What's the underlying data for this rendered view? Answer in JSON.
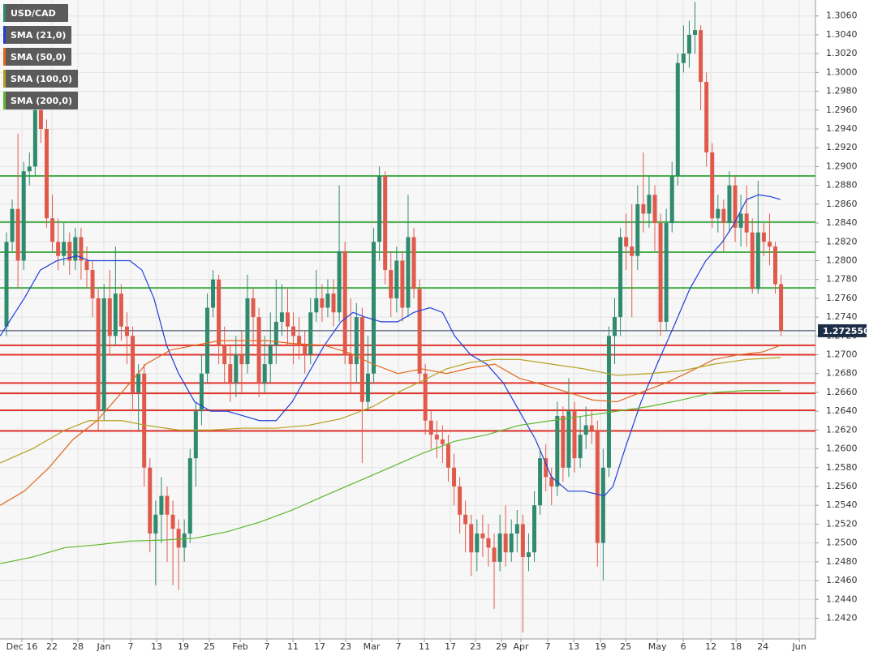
{
  "chart_data": {
    "type": "candlestick",
    "candles": {
      "name": "USD/CAD",
      "up_color": "#2f8a6e",
      "down_color": "#e05a4c",
      "legend_color": "#2f8a6e",
      "open": [
        1.273,
        1.282,
        1.2855,
        1.28,
        1.2895,
        1.29,
        1.296,
        1.294,
        1.2845,
        1.282,
        1.2805,
        1.282,
        1.28,
        1.2825,
        1.28,
        1.279,
        1.276,
        1.264,
        1.276,
        1.272,
        1.2765,
        1.273,
        1.272,
        1.266,
        1.268,
        1.258,
        1.251,
        1.253,
        1.255,
        1.253,
        1.2515,
        1.2495,
        1.251,
        1.259,
        1.264,
        1.268,
        1.275,
        1.278,
        1.271,
        1.269,
        1.267,
        1.27,
        1.269,
        1.276,
        1.274,
        1.267,
        1.269,
        1.271,
        1.2735,
        1.2745,
        1.273,
        1.272,
        1.271,
        1.27,
        1.2745,
        1.276,
        1.275,
        1.2765,
        1.2745,
        1.281,
        1.27,
        1.269,
        1.274,
        1.265,
        1.268,
        1.282,
        1.289,
        1.279,
        1.276,
        1.28,
        1.275,
        1.2825,
        1.277,
        1.268,
        1.263,
        1.2615,
        1.261,
        1.2605,
        1.258,
        1.256,
        1.253,
        1.252,
        1.249,
        1.251,
        1.2505,
        1.2495,
        1.248,
        1.251,
        1.249,
        1.251,
        1.252,
        1.2485,
        1.249,
        1.254,
        1.259,
        1.257,
        1.256,
        1.2635,
        1.258,
        1.264,
        1.259,
        1.2615,
        1.2625,
        1.262,
        1.25,
        1.258,
        1.272,
        1.274,
        1.2825,
        1.2815,
        1.2805,
        1.286,
        1.285,
        1.287,
        1.284,
        1.2735,
        1.284,
        1.289,
        1.301,
        1.302,
        1.304,
        1.3045,
        1.299,
        1.2915,
        1.2845,
        1.2855,
        1.284,
        1.288,
        1.2835,
        1.285,
        1.283,
        1.277,
        1.283,
        1.282,
        1.2815,
        1.2775
      ],
      "high": [
        1.283,
        1.2865,
        1.2935,
        1.2905,
        1.2915,
        1.297,
        1.2975,
        1.295,
        1.287,
        1.2845,
        1.284,
        1.283,
        1.2835,
        1.2835,
        1.2815,
        1.28,
        1.277,
        1.2775,
        1.279,
        1.2815,
        1.2775,
        1.2745,
        1.273,
        1.269,
        1.269,
        1.259,
        1.2545,
        1.257,
        1.256,
        1.2545,
        1.2525,
        1.2525,
        1.26,
        1.265,
        1.27,
        1.2765,
        1.279,
        1.2785,
        1.273,
        1.271,
        1.272,
        1.2725,
        1.2785,
        1.277,
        1.275,
        1.272,
        1.2745,
        1.278,
        1.2775,
        1.277,
        1.2745,
        1.274,
        1.2725,
        1.276,
        1.279,
        1.2775,
        1.278,
        1.278,
        1.288,
        1.282,
        1.276,
        1.2755,
        1.275,
        1.272,
        1.2835,
        1.29,
        1.2895,
        1.281,
        1.2815,
        1.281,
        1.287,
        1.2835,
        1.278,
        1.269,
        1.264,
        1.263,
        1.2625,
        1.2615,
        1.2595,
        1.257,
        1.2545,
        1.253,
        1.2525,
        1.253,
        1.252,
        1.251,
        1.253,
        1.254,
        1.2525,
        1.2535,
        1.253,
        1.251,
        1.2555,
        1.26,
        1.2605,
        1.258,
        1.265,
        1.2645,
        1.2675,
        1.265,
        1.2635,
        1.2645,
        1.264,
        1.263,
        1.26,
        1.273,
        1.276,
        1.2835,
        1.285,
        1.286,
        1.288,
        1.2915,
        1.289,
        1.288,
        1.285,
        1.2855,
        1.2905,
        1.302,
        1.305,
        1.3055,
        1.3075,
        1.305,
        1.3,
        1.2925,
        1.287,
        1.2865,
        1.2895,
        1.289,
        1.287,
        1.288,
        1.2845,
        1.2885,
        1.284,
        1.285,
        1.282,
        1.2785
      ],
      "low": [
        1.272,
        1.281,
        1.277,
        1.279,
        1.288,
        1.289,
        1.2925,
        1.2835,
        1.281,
        1.279,
        1.2795,
        1.2785,
        1.279,
        1.278,
        1.277,
        1.274,
        1.262,
        1.263,
        1.27,
        1.271,
        1.2715,
        1.269,
        1.264,
        1.262,
        1.256,
        1.249,
        1.2455,
        1.25,
        1.248,
        1.2455,
        1.245,
        1.248,
        1.25,
        1.256,
        1.2625,
        1.267,
        1.274,
        1.269,
        1.267,
        1.265,
        1.2655,
        1.266,
        1.268,
        1.271,
        1.2655,
        1.266,
        1.267,
        1.269,
        1.272,
        1.271,
        1.269,
        1.2695,
        1.268,
        1.269,
        1.2735,
        1.2735,
        1.274,
        1.273,
        1.2735,
        1.269,
        1.266,
        1.267,
        1.2585,
        1.264,
        1.267,
        1.28,
        1.2775,
        1.274,
        1.2745,
        1.2735,
        1.274,
        1.276,
        1.267,
        1.2615,
        1.26,
        1.259,
        1.2585,
        1.2565,
        1.254,
        1.251,
        1.249,
        1.2465,
        1.247,
        1.2485,
        1.2475,
        1.243,
        1.247,
        1.2475,
        1.248,
        1.249,
        1.2405,
        1.247,
        1.248,
        1.253,
        1.2555,
        1.254,
        1.255,
        1.2565,
        1.257,
        1.2575,
        1.258,
        1.26,
        1.2605,
        1.2475,
        1.246,
        1.257,
        1.269,
        1.272,
        1.279,
        1.274,
        1.279,
        1.283,
        1.2835,
        1.281,
        1.272,
        1.2725,
        1.283,
        1.288,
        1.3,
        1.3005,
        1.302,
        1.296,
        1.29,
        1.2835,
        1.283,
        1.281,
        1.283,
        1.282,
        1.2815,
        1.2815,
        1.2765,
        1.2765,
        1.2805,
        1.2795,
        1.2765,
        1.272
      ],
      "close": [
        1.282,
        1.2855,
        1.28,
        1.2895,
        1.29,
        1.296,
        1.294,
        1.2845,
        1.282,
        1.2805,
        1.282,
        1.28,
        1.2825,
        1.28,
        1.279,
        1.276,
        1.264,
        1.276,
        1.272,
        1.2765,
        1.273,
        1.272,
        1.266,
        1.268,
        1.258,
        1.251,
        1.253,
        1.255,
        1.253,
        1.2515,
        1.2495,
        1.251,
        1.259,
        1.264,
        1.268,
        1.275,
        1.278,
        1.271,
        1.269,
        1.267,
        1.27,
        1.269,
        1.276,
        1.274,
        1.267,
        1.269,
        1.271,
        1.2735,
        1.2745,
        1.273,
        1.272,
        1.271,
        1.27,
        1.2745,
        1.276,
        1.275,
        1.2765,
        1.2745,
        1.281,
        1.27,
        1.269,
        1.274,
        1.265,
        1.268,
        1.282,
        1.289,
        1.279,
        1.276,
        1.28,
        1.275,
        1.2825,
        1.277,
        1.268,
        1.263,
        1.2615,
        1.261,
        1.2605,
        1.258,
        1.256,
        1.253,
        1.252,
        1.249,
        1.251,
        1.2505,
        1.2495,
        1.248,
        1.251,
        1.249,
        1.251,
        1.252,
        1.2485,
        1.249,
        1.254,
        1.259,
        1.257,
        1.256,
        1.2635,
        1.258,
        1.264,
        1.259,
        1.2615,
        1.2625,
        1.262,
        1.25,
        1.258,
        1.272,
        1.274,
        1.2825,
        1.2815,
        1.2805,
        1.286,
        1.285,
        1.287,
        1.284,
        1.2735,
        1.284,
        1.289,
        1.301,
        1.302,
        1.304,
        1.3045,
        1.299,
        1.2915,
        1.2845,
        1.2855,
        1.284,
        1.288,
        1.2835,
        1.285,
        1.283,
        1.277,
        1.283,
        1.282,
        1.2815,
        1.2775,
        1.27255
      ]
    },
    "overlays": [
      {
        "name": "SMA (21,0)",
        "color": "#1f3fd8",
        "x": [
          -1.1,
          3.1,
          5.9,
          8.8,
          12.3,
          14.4,
          18.7,
          21.5,
          23.6,
          25.7,
          27.9,
          30.0,
          32.8,
          35.6,
          38.5,
          41.3,
          44.1,
          47.0,
          49.8,
          52.6,
          55.4,
          58.3,
          60.4,
          62.5,
          65.3,
          68.2,
          71.0,
          73.8,
          76.0,
          78.1,
          80.9,
          83.7,
          86.6,
          89.4,
          92.2,
          95.0,
          97.9,
          100.7,
          104.2,
          105.7,
          107.8,
          110.6,
          113.4,
          116.3,
          119.1,
          121.9,
          124.8,
          126.9,
          129.0,
          131.1,
          133.2,
          134.9
        ],
        "values": [
          1.272,
          1.276,
          1.279,
          1.28,
          1.2805,
          1.28,
          1.28,
          1.28,
          1.279,
          1.276,
          1.271,
          1.268,
          1.265,
          1.264,
          1.264,
          1.2635,
          1.263,
          1.263,
          1.265,
          1.268,
          1.271,
          1.2735,
          1.2745,
          1.274,
          1.2735,
          1.2735,
          1.2745,
          1.275,
          1.2745,
          1.272,
          1.27,
          1.269,
          1.267,
          1.264,
          1.261,
          1.257,
          1.2555,
          1.2555,
          1.255,
          1.256,
          1.26,
          1.265,
          1.269,
          1.273,
          1.277,
          1.28,
          1.282,
          1.284,
          1.2865,
          1.287,
          1.2868,
          1.2865
        ]
      },
      {
        "name": "SMA (50,0)",
        "color": "#e2661c",
        "x": [
          -1.1,
          3.1,
          7.4,
          11.6,
          15.8,
          20.1,
          24.3,
          28.6,
          32.8,
          37.1,
          41.3,
          45.5,
          49.8,
          55.4,
          59.7,
          63.9,
          68.2,
          72.4,
          76.7,
          80.9,
          85.1,
          89.4,
          93.6,
          97.9,
          102.1,
          106.4,
          110.6,
          114.9,
          119.1,
          123.3,
          127.6,
          131.8,
          134.9
        ],
        "values": [
          1.254,
          1.2555,
          1.258,
          1.261,
          1.263,
          1.266,
          1.269,
          1.2705,
          1.271,
          1.2715,
          1.2715,
          1.2715,
          1.2712,
          1.271,
          1.2702,
          1.269,
          1.268,
          1.2685,
          1.268,
          1.2686,
          1.269,
          1.2675,
          1.2668,
          1.266,
          1.2652,
          1.265,
          1.266,
          1.267,
          1.2682,
          1.2695,
          1.27,
          1.2703,
          1.271
        ]
      },
      {
        "name": "SMA (100,0)",
        "color": "#b59f1e",
        "x": [
          -1.1,
          4.5,
          10.2,
          14.4,
          20.1,
          24.3,
          30.0,
          35.6,
          41.3,
          47.0,
          52.6,
          58.3,
          63.9,
          68.2,
          72.4,
          76.7,
          80.9,
          85.1,
          89.4,
          95.0,
          100.7,
          106.4,
          112.0,
          117.7,
          123.3,
          129.0,
          134.9
        ],
        "values": [
          1.2585,
          1.26,
          1.262,
          1.263,
          1.263,
          1.2625,
          1.262,
          1.262,
          1.2622,
          1.2622,
          1.2625,
          1.2632,
          1.2645,
          1.266,
          1.2672,
          1.2685,
          1.2692,
          1.2695,
          1.2695,
          1.269,
          1.2685,
          1.2678,
          1.268,
          1.2683,
          1.269,
          1.2695,
          1.2697
        ]
      },
      {
        "name": "SMA (200,0)",
        "color": "#5cb82c",
        "x": [
          -1.1,
          4.5,
          10.2,
          15.8,
          21.5,
          27.2,
          32.8,
          38.5,
          44.1,
          49.8,
          55.4,
          61.1,
          66.8,
          72.4,
          78.1,
          83.7,
          89.4,
          95.0,
          100.7,
          106.4,
          112.0,
          117.7,
          123.3,
          129.0,
          134.9
        ],
        "values": [
          1.2478,
          1.2485,
          1.2495,
          1.2498,
          1.2502,
          1.2503,
          1.2505,
          1.2512,
          1.2522,
          1.2535,
          1.255,
          1.2565,
          1.258,
          1.2595,
          1.2608,
          1.2615,
          1.2625,
          1.263,
          1.2635,
          1.264,
          1.2645,
          1.2652,
          1.266,
          1.2662,
          1.2662
        ]
      }
    ],
    "levels": [
      {
        "color": "#49ad4c",
        "values": [
          1.289,
          1.2841,
          1.2809,
          1.2771
        ]
      },
      {
        "color": "#e0352b",
        "values": [
          1.271,
          1.27,
          1.267,
          1.2659,
          1.2641,
          1.2619
        ]
      }
    ],
    "last_price": {
      "value": 1.27255,
      "label": "1.272550"
    },
    "xlim": [
      -1.13,
      141.0
    ],
    "xticks": [
      {
        "value": 2.69,
        "label": "Dec 16"
      },
      {
        "value": 7.92,
        "label": "22"
      },
      {
        "value": 12.45,
        "label": "28"
      },
      {
        "value": 16.97,
        "label": "Jan"
      },
      {
        "value": 21.64,
        "label": "7"
      },
      {
        "value": 26.17,
        "label": "13"
      },
      {
        "value": 30.83,
        "label": "19"
      },
      {
        "value": 35.36,
        "label": "25"
      },
      {
        "value": 40.74,
        "label": "Feb"
      },
      {
        "value": 45.4,
        "label": "7"
      },
      {
        "value": 49.93,
        "label": "11"
      },
      {
        "value": 54.6,
        "label": "17"
      },
      {
        "value": 59.12,
        "label": "23"
      },
      {
        "value": 63.65,
        "label": "Mar"
      },
      {
        "value": 68.32,
        "label": "7"
      },
      {
        "value": 72.84,
        "label": "11"
      },
      {
        "value": 77.37,
        "label": "17"
      },
      {
        "value": 81.75,
        "label": "23"
      },
      {
        "value": 86.28,
        "label": "29"
      },
      {
        "value": 89.67,
        "label": "Apr"
      },
      {
        "value": 94.34,
        "label": "7"
      },
      {
        "value": 98.87,
        "label": "13"
      },
      {
        "value": 103.54,
        "label": "19"
      },
      {
        "value": 107.92,
        "label": "25"
      },
      {
        "value": 113.44,
        "label": "May"
      },
      {
        "value": 117.96,
        "label": "6"
      },
      {
        "value": 122.77,
        "label": "12"
      },
      {
        "value": 127.16,
        "label": "18"
      },
      {
        "value": 131.82,
        "label": "24"
      },
      {
        "value": 138.19,
        "label": "Jun"
      }
    ],
    "ylim": [
      1.2398,
      1.3077
    ],
    "yticks": [
      {
        "value": 1.242,
        "label": "1.2420"
      },
      {
        "value": 1.244,
        "label": "1.2440"
      },
      {
        "value": 1.246,
        "label": "1.2460"
      },
      {
        "value": 1.248,
        "label": "1.2480"
      },
      {
        "value": 1.25,
        "label": "1.2500"
      },
      {
        "value": 1.252,
        "label": "1.2520"
      },
      {
        "value": 1.254,
        "label": "1.2540"
      },
      {
        "value": 1.256,
        "label": "1.2560"
      },
      {
        "value": 1.258,
        "label": "1.2580"
      },
      {
        "value": 1.26,
        "label": "1.2600"
      },
      {
        "value": 1.262,
        "label": "1.2620"
      },
      {
        "value": 1.264,
        "label": "1.2640"
      },
      {
        "value": 1.266,
        "label": "1.2660"
      },
      {
        "value": 1.268,
        "label": "1.2680"
      },
      {
        "value": 1.27,
        "label": "1.2700"
      },
      {
        "value": 1.272,
        "label": "1.2720"
      },
      {
        "value": 1.274,
        "label": "1.2740"
      },
      {
        "value": 1.276,
        "label": "1.2760"
      },
      {
        "value": 1.278,
        "label": "1.2780"
      },
      {
        "value": 1.28,
        "label": "1.2800"
      },
      {
        "value": 1.282,
        "label": "1.2820"
      },
      {
        "value": 1.284,
        "label": "1.2840"
      },
      {
        "value": 1.286,
        "label": "1.2860"
      },
      {
        "value": 1.288,
        "label": "1.2880"
      },
      {
        "value": 1.29,
        "label": "1.2900"
      },
      {
        "value": 1.292,
        "label": "1.2920"
      },
      {
        "value": 1.294,
        "label": "1.2940"
      },
      {
        "value": 1.296,
        "label": "1.2960"
      },
      {
        "value": 1.298,
        "label": "1.2980"
      },
      {
        "value": 1.3,
        "label": "1.3000"
      },
      {
        "value": 1.302,
        "label": "1.3020"
      },
      {
        "value": 1.304,
        "label": "1.3040"
      },
      {
        "value": 1.306,
        "label": "1.3060"
      }
    ],
    "grid": true
  }
}
